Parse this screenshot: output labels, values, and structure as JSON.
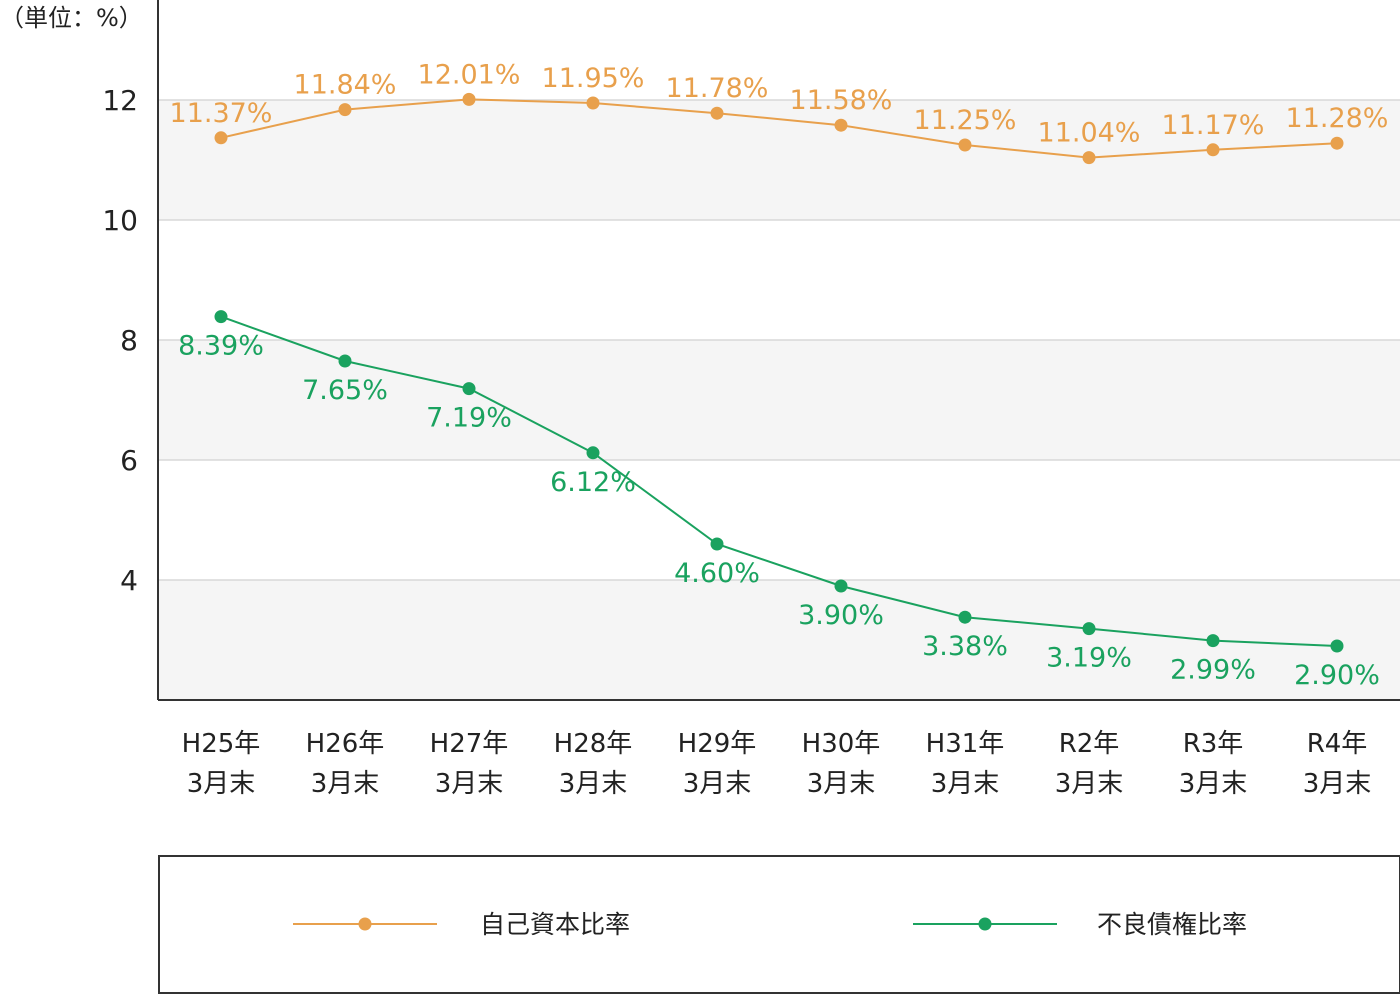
{
  "chart_data": {
    "type": "line",
    "unit_label": "（単位：%）",
    "categories": [
      [
        "H25年",
        "3月末"
      ],
      [
        "H26年",
        "3月末"
      ],
      [
        "H27年",
        "3月末"
      ],
      [
        "H28年",
        "3月末"
      ],
      [
        "H29年",
        "3月末"
      ],
      [
        "H30年",
        "3月末"
      ],
      [
        "H31年",
        "3月末"
      ],
      [
        "R2年",
        "3月末"
      ],
      [
        "R3年",
        "3月末"
      ],
      [
        "R4年",
        "3月末"
      ]
    ],
    "y_ticks": [
      4,
      6,
      8,
      10,
      12
    ],
    "ylim": [
      2,
      13.5
    ],
    "series": [
      {
        "name": "自己資本比率",
        "color": "#e8a04c",
        "values": [
          11.37,
          11.84,
          12.01,
          11.95,
          11.78,
          11.58,
          11.25,
          11.04,
          11.17,
          11.28
        ],
        "labels": [
          "11.37%",
          "11.84%",
          "12.01%",
          "11.95%",
          "11.78%",
          "11.58%",
          "11.25%",
          "11.04%",
          "11.17%",
          "11.28%"
        ],
        "label_position": "above"
      },
      {
        "name": "不良債権比率",
        "color": "#1aa25f",
        "values": [
          8.39,
          7.65,
          7.19,
          6.12,
          4.6,
          3.9,
          3.38,
          3.19,
          2.99,
          2.9
        ],
        "labels": [
          "8.39%",
          "7.65%",
          "7.19%",
          "6.12%",
          "4.60%",
          "3.90%",
          "3.38%",
          "3.19%",
          "2.99%",
          "2.90%"
        ],
        "label_position": "below"
      }
    ],
    "grid": true,
    "band_shading": true,
    "legend_position": "bottom"
  }
}
